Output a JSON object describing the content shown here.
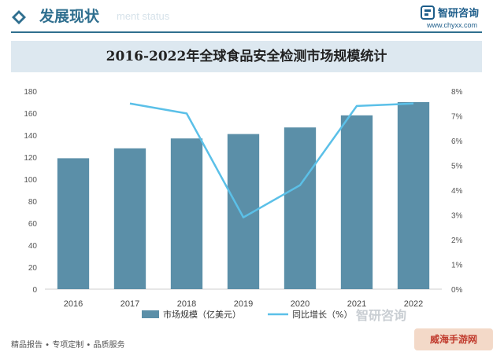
{
  "header": {
    "section_title": "发展现状",
    "ghost_text": "ment status",
    "brand_name": "智研咨询",
    "brand_url": "www.chyxx.com",
    "colors": {
      "accent": "#2f6f8f",
      "brand": "#1d5d8a"
    }
  },
  "chart_data": {
    "type": "bar",
    "title": "2016-2022年全球食品安全检测市场规模统计",
    "categories": [
      "2016",
      "2017",
      "2018",
      "2019",
      "2020",
      "2021",
      "2022"
    ],
    "series": [
      {
        "name": "市场规模（亿美元）",
        "type": "bar",
        "axis": "left",
        "color": "#5b8fa8",
        "values": [
          119,
          128,
          137,
          141,
          147,
          158,
          170
        ]
      },
      {
        "name": "同比增长（%）",
        "type": "line",
        "axis": "right",
        "color": "#5bc0e8",
        "values": [
          null,
          7.5,
          7.1,
          2.9,
          4.2,
          7.4,
          7.5
        ]
      }
    ],
    "y_left": {
      "min": 0,
      "max": 180,
      "ticks": [
        0,
        20,
        40,
        60,
        80,
        100,
        120,
        140,
        160,
        180
      ]
    },
    "y_right": {
      "min": 0,
      "max": 8,
      "ticks": [
        "0%",
        "1%",
        "2%",
        "3%",
        "4%",
        "5%",
        "6%",
        "7%",
        "8%"
      ]
    },
    "grid": false,
    "legend_position": "bottom"
  },
  "footer": {
    "text": "精品报告 • 专项定制 • 品质服务",
    "brand": "智研咨询",
    "badge": "威海手游网"
  }
}
